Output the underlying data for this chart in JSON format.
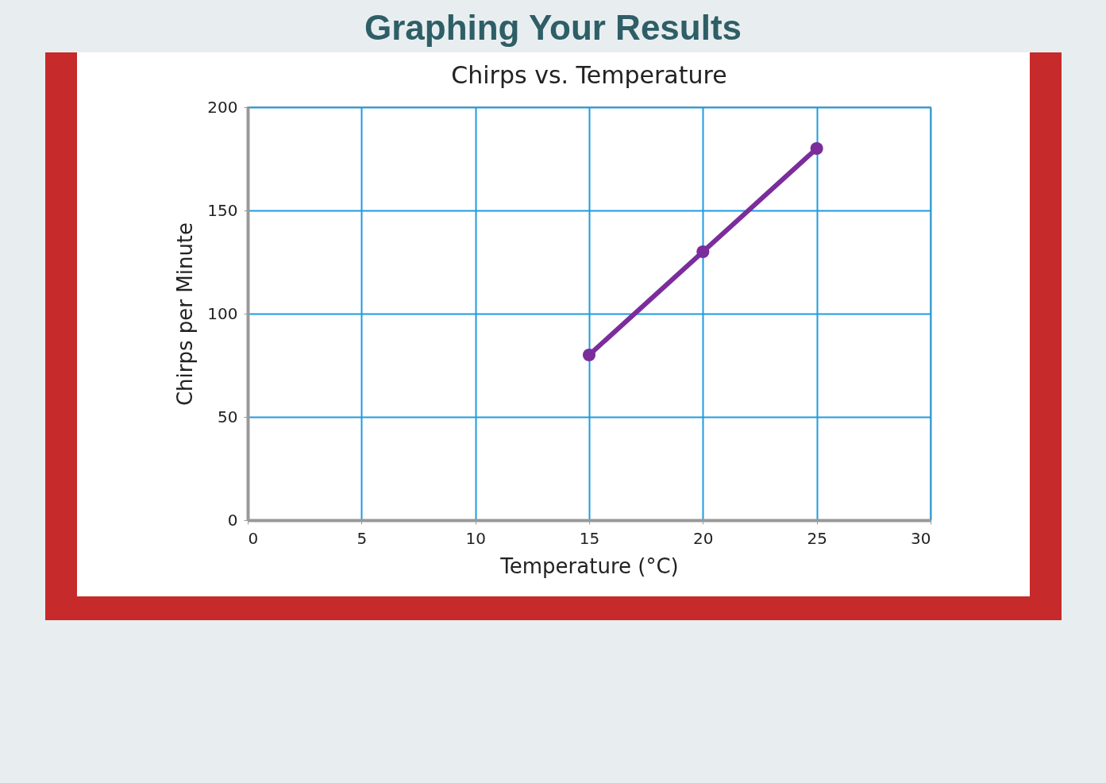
{
  "chart_data": {
    "type": "line",
    "title": "Graphing Your Results",
    "subtitle": "Chirps vs. Temperature",
    "xlabel": "Temperature (°C)",
    "ylabel": "Chirps per Minute",
    "x": [
      15,
      20,
      25
    ],
    "series": [
      {
        "color": "#7b2d9c",
        "values": [
          80,
          130,
          180
        ]
      }
    ],
    "xlim": [
      0,
      30
    ],
    "xticks": [
      0,
      5,
      10,
      15,
      20,
      25,
      30
    ],
    "ylim": [
      0,
      200
    ],
    "yticks": [
      0,
      50,
      100,
      150,
      200
    ],
    "grid": true,
    "marker": "circle",
    "line_style": "solid"
  }
}
